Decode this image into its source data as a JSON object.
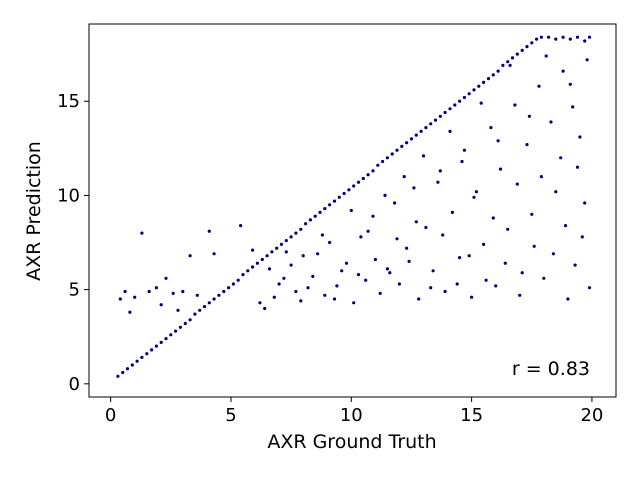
{
  "chart_data": {
    "type": "scatter",
    "title": "",
    "xlabel": "AXR Ground Truth",
    "ylabel": "AXR Prediction",
    "xlim": [
      -0.9,
      21.0
    ],
    "ylim": [
      -0.7,
      19.1
    ],
    "xticks": [
      0,
      5,
      10,
      15,
      20
    ],
    "yticks": [
      0,
      5,
      10,
      15
    ],
    "grid": false,
    "legend": "none",
    "point_color": "#00007f",
    "annotation": {
      "text": "r = 0.83",
      "position": "bottom-right"
    },
    "series": [
      {
        "values_description": "",
        "points": [
          [
            0.3,
            0.4
          ],
          [
            0.5,
            0.6
          ],
          [
            0.7,
            0.8
          ],
          [
            0.9,
            1.0
          ],
          [
            1.1,
            1.2
          ],
          [
            1.3,
            1.4
          ],
          [
            1.5,
            1.6
          ],
          [
            1.7,
            1.8
          ],
          [
            1.9,
            2.0
          ],
          [
            2.1,
            2.2
          ],
          [
            2.3,
            2.4
          ],
          [
            2.5,
            2.6
          ],
          [
            2.7,
            2.8
          ],
          [
            2.9,
            3.0
          ],
          [
            3.1,
            3.2
          ],
          [
            3.3,
            3.4
          ],
          [
            3.5,
            3.7
          ],
          [
            3.7,
            3.9
          ],
          [
            3.9,
            4.1
          ],
          [
            4.1,
            4.3
          ],
          [
            4.3,
            4.5
          ],
          [
            4.5,
            4.7
          ],
          [
            4.7,
            4.9
          ],
          [
            4.9,
            5.1
          ],
          [
            5.1,
            5.3
          ],
          [
            5.3,
            5.5
          ],
          [
            5.5,
            5.8
          ],
          [
            5.7,
            6.0
          ],
          [
            5.9,
            6.2
          ],
          [
            6.1,
            6.4
          ],
          [
            6.3,
            6.6
          ],
          [
            6.5,
            6.8
          ],
          [
            6.7,
            7.0
          ],
          [
            6.9,
            7.2
          ],
          [
            7.1,
            7.4
          ],
          [
            7.3,
            7.6
          ],
          [
            7.5,
            7.8
          ],
          [
            7.7,
            8.0
          ],
          [
            7.9,
            8.2
          ],
          [
            8.1,
            8.5
          ],
          [
            8.3,
            8.7
          ],
          [
            8.5,
            8.9
          ],
          [
            8.7,
            9.1
          ],
          [
            8.9,
            9.3
          ],
          [
            9.1,
            9.5
          ],
          [
            9.3,
            9.7
          ],
          [
            9.5,
            9.9
          ],
          [
            9.7,
            10.1
          ],
          [
            9.9,
            10.3
          ],
          [
            10.1,
            10.5
          ],
          [
            10.3,
            10.7
          ],
          [
            10.5,
            10.9
          ],
          [
            10.7,
            11.1
          ],
          [
            10.9,
            11.3
          ],
          [
            11.1,
            11.6
          ],
          [
            11.3,
            11.8
          ],
          [
            11.5,
            12.0
          ],
          [
            11.7,
            12.2
          ],
          [
            11.9,
            12.4
          ],
          [
            12.1,
            12.6
          ],
          [
            12.3,
            12.8
          ],
          [
            12.5,
            13.0
          ],
          [
            12.7,
            13.2
          ],
          [
            12.9,
            13.4
          ],
          [
            13.1,
            13.6
          ],
          [
            13.3,
            13.8
          ],
          [
            13.5,
            14.0
          ],
          [
            13.7,
            14.2
          ],
          [
            13.9,
            14.4
          ],
          [
            14.1,
            14.6
          ],
          [
            14.3,
            14.8
          ],
          [
            14.5,
            15.0
          ],
          [
            14.7,
            15.2
          ],
          [
            14.9,
            15.4
          ],
          [
            15.1,
            15.6
          ],
          [
            15.3,
            15.8
          ],
          [
            15.5,
            16.0
          ],
          [
            15.7,
            16.2
          ],
          [
            15.9,
            16.4
          ],
          [
            16.1,
            16.6
          ],
          [
            16.3,
            16.9
          ],
          [
            16.5,
            17.1
          ],
          [
            16.7,
            17.3
          ],
          [
            16.9,
            17.5
          ],
          [
            17.1,
            17.7
          ],
          [
            17.3,
            17.9
          ],
          [
            17.5,
            18.1
          ],
          [
            17.7,
            18.3
          ],
          [
            17.9,
            18.4
          ],
          [
            18.2,
            18.4
          ],
          [
            18.5,
            18.3
          ],
          [
            18.8,
            18.4
          ],
          [
            19.1,
            18.3
          ],
          [
            19.4,
            18.4
          ],
          [
            19.7,
            18.2
          ],
          [
            19.9,
            18.4
          ],
          [
            0.4,
            4.5
          ],
          [
            0.6,
            4.9
          ],
          [
            0.8,
            3.8
          ],
          [
            1.0,
            4.6
          ],
          [
            1.3,
            8.0
          ],
          [
            1.6,
            4.9
          ],
          [
            1.9,
            5.1
          ],
          [
            2.1,
            4.2
          ],
          [
            2.3,
            5.6
          ],
          [
            2.6,
            4.8
          ],
          [
            2.8,
            3.9
          ],
          [
            3.0,
            4.9
          ],
          [
            3.3,
            6.8
          ],
          [
            3.6,
            4.7
          ],
          [
            4.1,
            8.1
          ],
          [
            4.3,
            6.9
          ],
          [
            5.4,
            8.4
          ],
          [
            5.9,
            7.1
          ],
          [
            6.4,
            4.0
          ],
          [
            6.8,
            4.6
          ],
          [
            7.2,
            5.6
          ],
          [
            7.5,
            6.3
          ],
          [
            7.9,
            4.4
          ],
          [
            8.2,
            5.1
          ],
          [
            8.6,
            6.9
          ],
          [
            8.9,
            4.7
          ],
          [
            9.1,
            7.5
          ],
          [
            9.4,
            5.2
          ],
          [
            9.8,
            6.4
          ],
          [
            10.1,
            4.3
          ],
          [
            10.4,
            7.8
          ],
          [
            10.6,
            5.5
          ],
          [
            10.9,
            8.9
          ],
          [
            11.2,
            4.8
          ],
          [
            11.5,
            6.1
          ],
          [
            11.8,
            9.6
          ],
          [
            12.0,
            5.3
          ],
          [
            12.3,
            7.2
          ],
          [
            12.6,
            10.4
          ],
          [
            12.8,
            4.5
          ],
          [
            13.1,
            8.3
          ],
          [
            13.4,
            6.0
          ],
          [
            13.7,
            11.3
          ],
          [
            13.9,
            4.9
          ],
          [
            14.2,
            9.1
          ],
          [
            14.5,
            6.7
          ],
          [
            14.7,
            12.4
          ],
          [
            15.0,
            4.6
          ],
          [
            15.2,
            10.2
          ],
          [
            15.5,
            7.4
          ],
          [
            15.8,
            13.6
          ],
          [
            16.0,
            5.2
          ],
          [
            16.2,
            11.4
          ],
          [
            16.5,
            8.2
          ],
          [
            16.8,
            14.8
          ],
          [
            17.0,
            4.7
          ],
          [
            17.3,
            12.7
          ],
          [
            17.5,
            9.0
          ],
          [
            17.8,
            15.8
          ],
          [
            18.0,
            5.6
          ],
          [
            18.3,
            13.9
          ],
          [
            18.5,
            10.2
          ],
          [
            18.8,
            16.6
          ],
          [
            19.0,
            4.5
          ],
          [
            19.2,
            14.7
          ],
          [
            19.4,
            11.5
          ],
          [
            19.6,
            7.8
          ],
          [
            19.8,
            17.2
          ],
          [
            19.9,
            5.1
          ],
          [
            19.7,
            9.6
          ],
          [
            19.5,
            13.1
          ],
          [
            19.3,
            6.3
          ],
          [
            19.1,
            15.9
          ],
          [
            18.9,
            8.4
          ],
          [
            18.7,
            12.0
          ],
          [
            18.4,
            6.9
          ],
          [
            18.1,
            17.4
          ],
          [
            17.9,
            11.0
          ],
          [
            17.6,
            7.3
          ],
          [
            17.4,
            14.2
          ],
          [
            17.1,
            5.9
          ],
          [
            16.9,
            10.6
          ],
          [
            16.6,
            16.9
          ],
          [
            16.4,
            6.4
          ],
          [
            16.1,
            12.9
          ],
          [
            15.9,
            8.8
          ],
          [
            15.6,
            5.5
          ],
          [
            15.4,
            14.9
          ],
          [
            15.1,
            9.9
          ],
          [
            14.9,
            6.8
          ],
          [
            14.6,
            11.8
          ],
          [
            14.4,
            5.3
          ],
          [
            14.1,
            13.4
          ],
          [
            13.8,
            7.9
          ],
          [
            13.6,
            10.7
          ],
          [
            13.3,
            5.1
          ],
          [
            13.0,
            12.1
          ],
          [
            12.7,
            8.6
          ],
          [
            12.4,
            6.5
          ],
          [
            12.2,
            11.0
          ],
          [
            11.9,
            7.7
          ],
          [
            11.6,
            5.9
          ],
          [
            11.4,
            10.0
          ],
          [
            11.0,
            6.6
          ],
          [
            10.7,
            8.1
          ],
          [
            10.3,
            5.8
          ],
          [
            10.0,
            9.2
          ],
          [
            9.6,
            6.0
          ],
          [
            9.3,
            4.5
          ],
          [
            8.8,
            7.9
          ],
          [
            8.4,
            5.7
          ],
          [
            8.0,
            6.8
          ],
          [
            7.7,
            4.9
          ],
          [
            7.3,
            7.0
          ],
          [
            7.0,
            5.3
          ],
          [
            6.6,
            6.1
          ],
          [
            6.2,
            4.3
          ]
        ]
      }
    ]
  }
}
